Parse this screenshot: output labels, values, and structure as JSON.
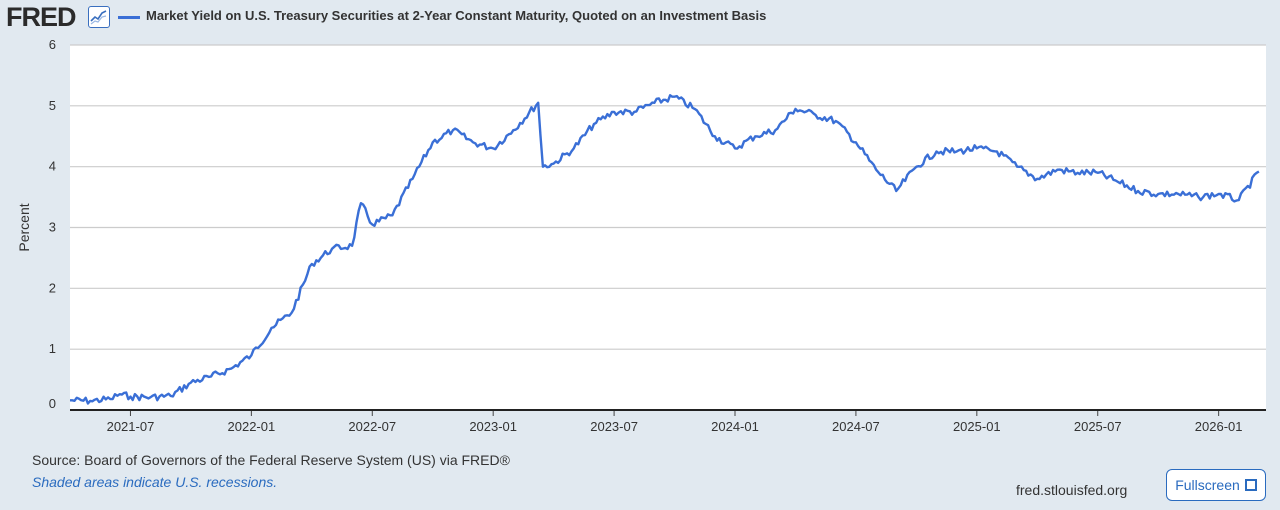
{
  "header": {
    "logo_text": "FRED",
    "logo_icon": "line-chart-icon",
    "legend_label": "Market Yield on U.S. Treasury Securities at 2-Year Constant Maturity, Quoted on an Investment Basis"
  },
  "footer": {
    "source": "Source: Board of Governors of the Federal Reserve System (US) via FRED®",
    "recession_note": "Shaded areas indicate U.S. recessions.",
    "site": "fred.stlouisfed.org",
    "fullscreen_label": "Fullscreen",
    "fullscreen_icon": "expand-icon"
  },
  "colors": {
    "background": "#e1e9f0",
    "plot_bg": "#ffffff",
    "series": "#3a6fd6",
    "grid": "#cccccc",
    "link": "#2a6bbf"
  },
  "chart_data": {
    "type": "line",
    "title": "Market Yield on U.S. Treasury Securities at 2-Year Constant Maturity, Quoted on an Investment Basis",
    "xlabel": "",
    "ylabel": "Percent",
    "ylim": [
      0,
      6
    ],
    "yticks": [
      0,
      1,
      2,
      3,
      4,
      5,
      6
    ],
    "xlim": [
      "2021-04",
      "2026-03"
    ],
    "xticks": [
      "2021-07",
      "2022-01",
      "2022-07",
      "2023-01",
      "2023-07",
      "2024-01",
      "2024-07",
      "2025-01",
      "2025-07",
      "2026-01"
    ],
    "grid": true,
    "series": [
      {
        "name": "Market Yield on U.S. Treasury Securities at 2-Year Constant Maturity, Quoted on an Investment Basis",
        "points": [
          [
            "2021-04",
            0.16
          ],
          [
            "2021-05",
            0.15
          ],
          [
            "2021-06",
            0.18
          ],
          [
            "2021-06-15",
            0.26
          ],
          [
            "2021-07",
            0.22
          ],
          [
            "2021-08",
            0.21
          ],
          [
            "2021-09",
            0.23
          ],
          [
            "2021-10",
            0.45
          ],
          [
            "2021-11",
            0.55
          ],
          [
            "2021-12",
            0.68
          ],
          [
            "2022-01",
            0.9
          ],
          [
            "2022-02",
            1.35
          ],
          [
            "2022-03",
            1.6
          ],
          [
            "2022-04",
            2.4
          ],
          [
            "2022-05",
            2.65
          ],
          [
            "2022-06",
            2.7
          ],
          [
            "2022-06-14",
            3.4
          ],
          [
            "2022-07",
            3.05
          ],
          [
            "2022-08",
            3.2
          ],
          [
            "2022-09",
            3.8
          ],
          [
            "2022-10",
            4.4
          ],
          [
            "2022-11",
            4.6
          ],
          [
            "2022-12",
            4.4
          ],
          [
            "2023-01",
            4.3
          ],
          [
            "2023-02",
            4.6
          ],
          [
            "2023-03-08",
            5.05
          ],
          [
            "2023-03-15",
            4.0
          ],
          [
            "2023-04",
            4.05
          ],
          [
            "2023-05",
            4.3
          ],
          [
            "2023-06",
            4.7
          ],
          [
            "2023-07",
            4.9
          ],
          [
            "2023-08",
            4.9
          ],
          [
            "2023-09",
            5.05
          ],
          [
            "2023-10",
            5.15
          ],
          [
            "2023-11",
            4.95
          ],
          [
            "2023-12",
            4.5
          ],
          [
            "2024-01",
            4.3
          ],
          [
            "2024-02",
            4.5
          ],
          [
            "2024-03",
            4.6
          ],
          [
            "2024-04",
            4.95
          ],
          [
            "2024-05",
            4.85
          ],
          [
            "2024-06",
            4.75
          ],
          [
            "2024-07",
            4.4
          ],
          [
            "2024-08",
            3.95
          ],
          [
            "2024-09",
            3.6
          ],
          [
            "2024-10",
            4.0
          ],
          [
            "2024-11",
            4.25
          ],
          [
            "2024-12",
            4.25
          ],
          [
            "2025-01",
            4.3
          ],
          [
            "2025-02",
            4.25
          ],
          [
            "2025-03",
            4.0
          ],
          [
            "2025-04",
            3.8
          ],
          [
            "2025-05",
            3.95
          ],
          [
            "2025-06",
            3.9
          ],
          [
            "2025-07",
            3.9
          ],
          [
            "2025-08",
            3.75
          ],
          [
            "2025-09",
            3.6
          ],
          [
            "2025-10",
            3.55
          ],
          [
            "2025-11",
            3.55
          ],
          [
            "2025-12",
            3.5
          ],
          [
            "2026-01",
            3.55
          ],
          [
            "2026-02",
            3.45
          ],
          [
            "2026-03",
            3.92
          ]
        ]
      }
    ]
  }
}
